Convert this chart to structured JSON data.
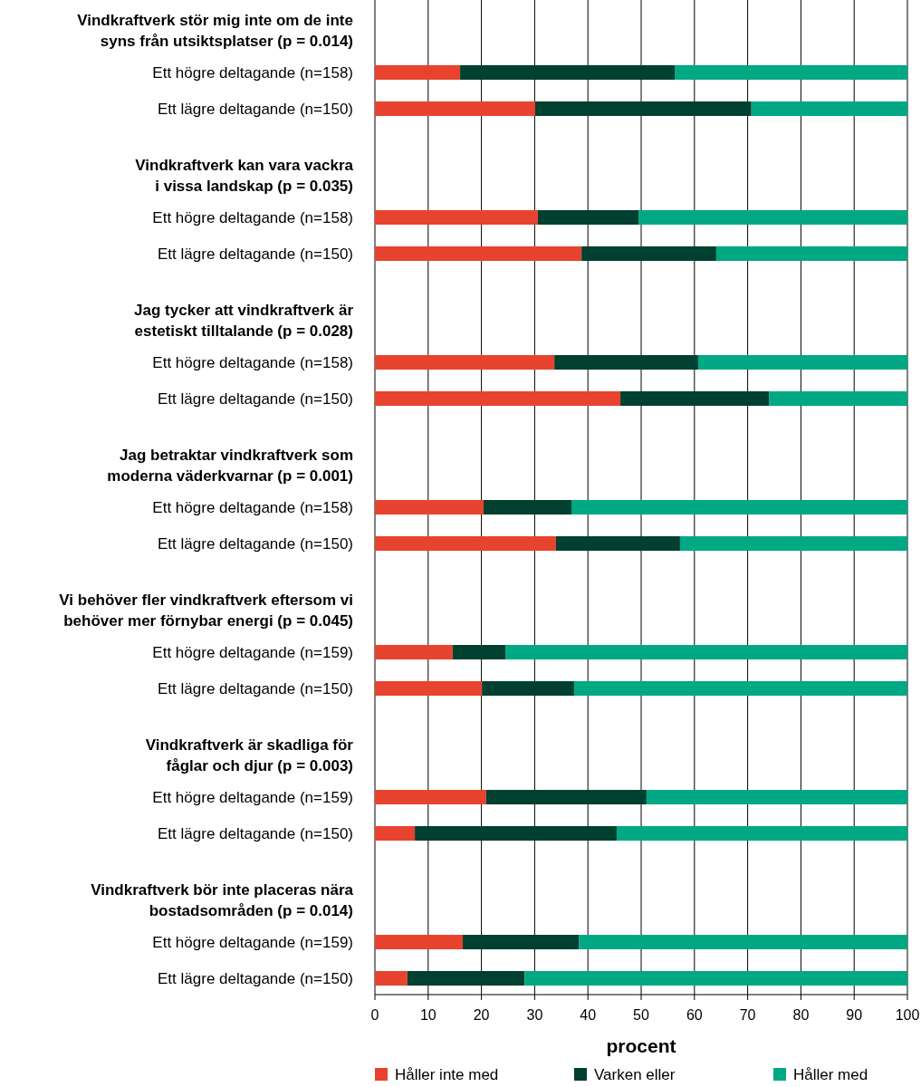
{
  "chart_data": {
    "type": "bar",
    "orientation": "horizontal",
    "stacked": true,
    "xlabel": "procent",
    "xlim": [
      0,
      100
    ],
    "xticks": [
      0,
      10,
      20,
      30,
      40,
      50,
      60,
      70,
      80,
      90,
      100
    ],
    "grid": "x",
    "legend": "bottom",
    "categories": [
      "Vindkraftverk stör mig inte om de inte\nsyns från utsiktsplatser (p = 0.014)",
      "Ett högre deltagande  (n=158)",
      "Ett lägre deltagande (n=150)",
      "Vindkraftverk kan vara vackra\ni vissa landskap (p = 0.035)",
      "Ett högre deltagande  (n=158)",
      "Ett lägre deltagande (n=150)",
      "Jag tycker att vindkraftverk är\nestetiskt tilltalande (p = 0.028)",
      "Ett högre deltagande  (n=158)",
      "Ett lägre deltagande (n=150)",
      "Jag betraktar vindkraftverk som\nmoderna väderkvarnar (p = 0.001)",
      "Ett högre deltagande  (n=158)",
      "Ett lägre deltagande (n=150)",
      "Vi behöver fler vindkraftverk eftersom vi\nbehöver mer förnybar energi (p = 0.045)",
      "Ett högre deltagande  (n=159)",
      "Ett lägre deltagande (n=150)",
      "Vindkraftverk är skadliga för\nfåglar och djur (p = 0.003)",
      "Ett högre deltagande  (n=159)",
      "Ett lägre deltagande (n=150)",
      "Vindkraftverk bör inte placeras nära\nbostadsområden (p = 0.014)",
      "Ett högre deltagande  (n=159)",
      "Ett lägre deltagande (n=150)"
    ],
    "series": [
      {
        "name": "Håller inte med",
        "color": "#e8432e",
        "values": [
          null,
          16.0,
          30.1,
          null,
          30.6,
          38.8,
          null,
          33.7,
          46.1,
          null,
          20.4,
          34.0,
          null,
          14.6,
          20.1,
          null,
          20.9,
          7.5,
          null,
          16.5,
          6.1
        ]
      },
      {
        "name": "Varken eller",
        "color": "#004030",
        "values": [
          null,
          40.3,
          40.6,
          null,
          18.9,
          25.3,
          null,
          27.0,
          27.9,
          null,
          16.5,
          23.3,
          null,
          9.9,
          17.3,
          null,
          30.1,
          37.9,
          null,
          21.8,
          22.0
        ]
      },
      {
        "name": "Håller med",
        "color": "#00a884",
        "values": [
          null,
          43.7,
          29.3,
          null,
          50.5,
          35.9,
          null,
          39.3,
          26.0,
          null,
          63.1,
          42.7,
          null,
          75.5,
          62.6,
          null,
          49.0,
          54.6,
          null,
          61.7,
          71.9
        ]
      }
    ]
  }
}
